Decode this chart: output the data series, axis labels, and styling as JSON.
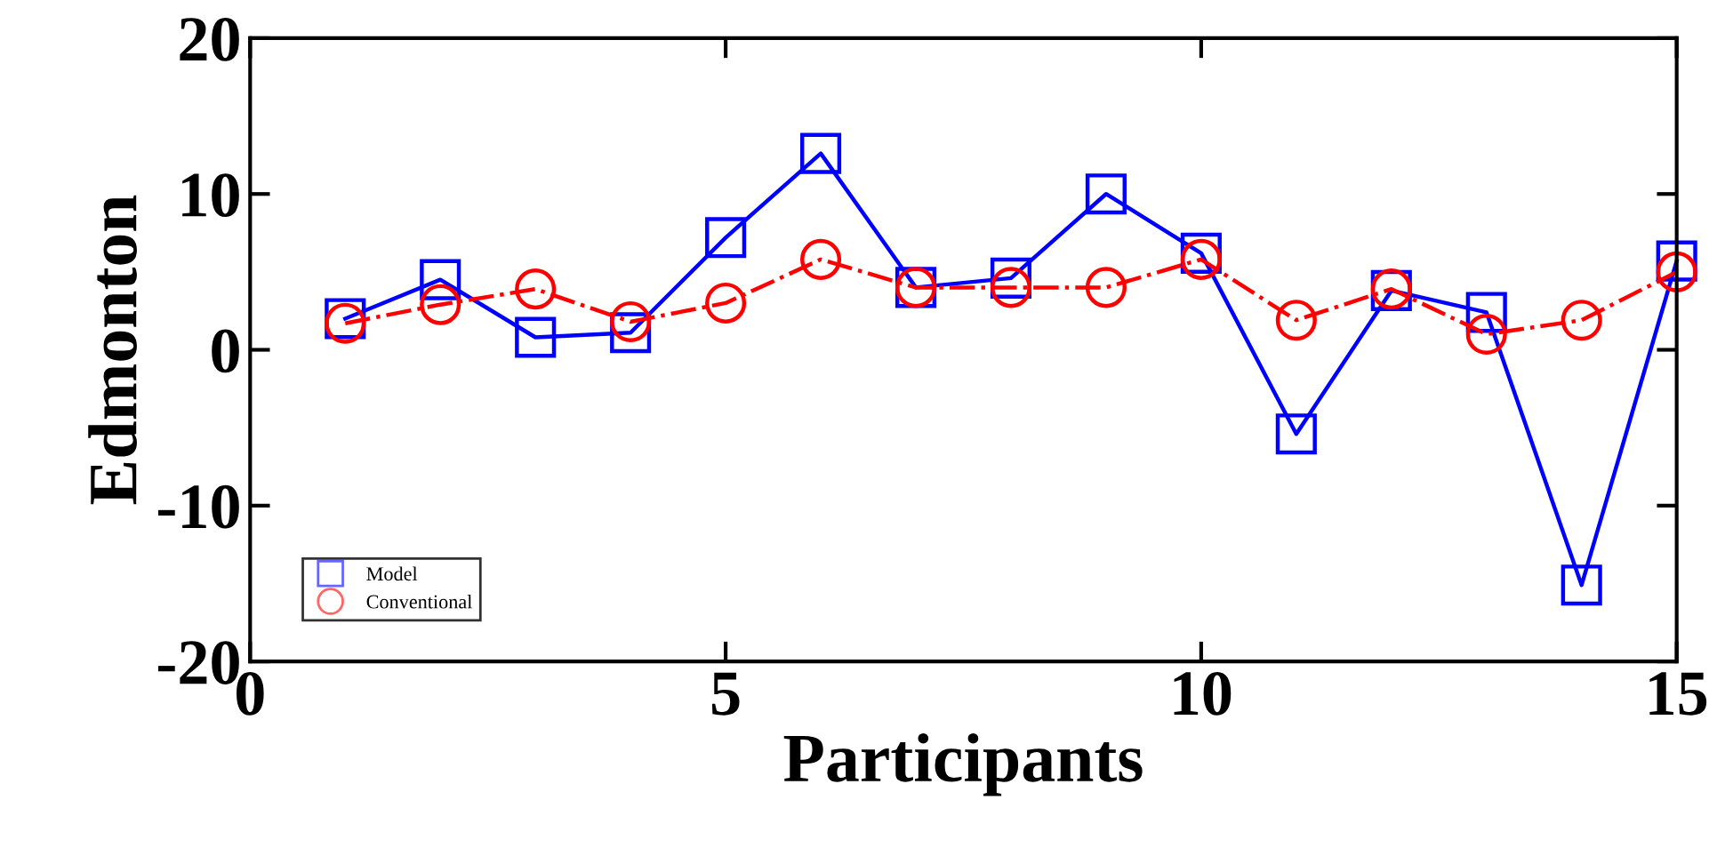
{
  "chart_data": {
    "type": "line",
    "xlabel": "Participants",
    "ylabel": "Edmonton",
    "x": [
      1,
      2,
      3,
      4,
      5,
      6,
      7,
      8,
      9,
      10,
      11,
      12,
      13,
      14,
      15
    ],
    "series": [
      {
        "name": "Model",
        "color": "#0000ff",
        "marker": "square",
        "line_style": "solid",
        "values": [
          2,
          4.5,
          0.8,
          1.1,
          7.2,
          12.6,
          4,
          4.6,
          10,
          6.2,
          -5.4,
          3.8,
          2.4,
          -15.1,
          5.7
        ]
      },
      {
        "name": "Conventional",
        "color": "#ff0000",
        "marker": "circle",
        "line_style": "dashdot",
        "values": [
          1.7,
          2.9,
          3.9,
          1.8,
          3,
          5.8,
          4,
          4,
          4,
          5.8,
          1.9,
          3.9,
          1,
          1.9,
          5
        ]
      }
    ],
    "xlim": [
      0,
      15
    ],
    "xticks": [
      0,
      5,
      10,
      15
    ],
    "ylim": [
      -20,
      20
    ],
    "yticks": [
      -20,
      -10,
      0,
      10,
      20
    ],
    "grid": false,
    "legend": "bottom left"
  }
}
